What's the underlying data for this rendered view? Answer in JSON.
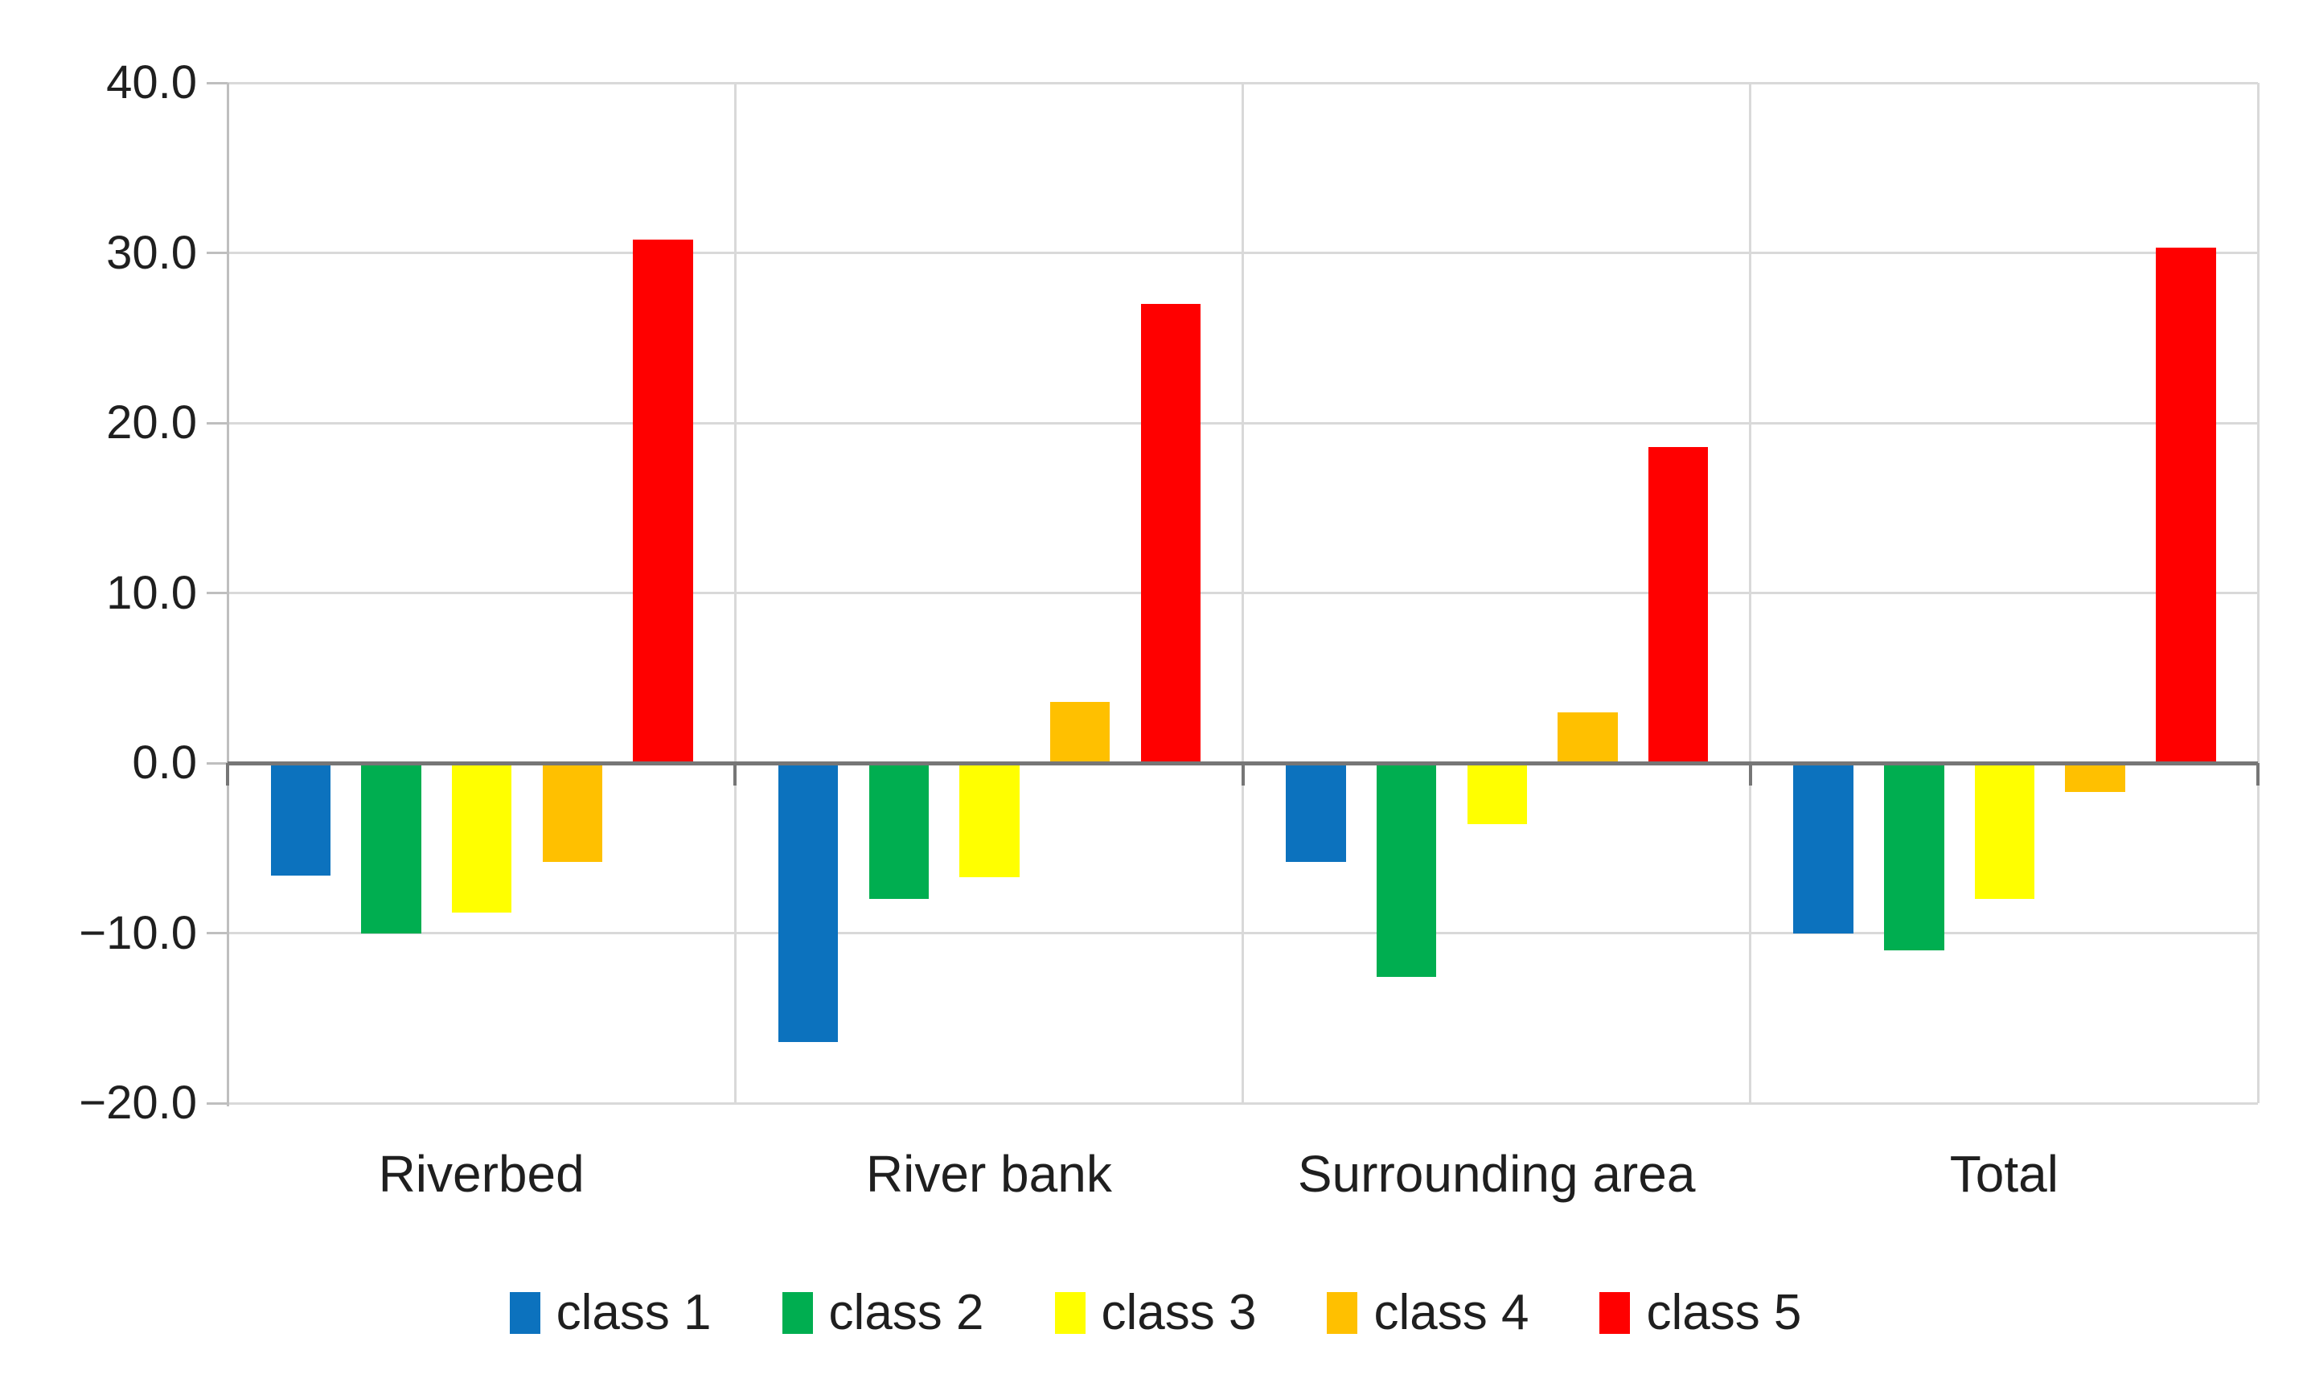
{
  "chart_data": {
    "type": "bar",
    "title": "",
    "xlabel": "",
    "ylabel": "",
    "categories": [
      "Riverbed",
      "River bank",
      "Surrounding area",
      "Total"
    ],
    "series": [
      {
        "name": "class 1",
        "color": "#0c72be",
        "values": [
          -6.6,
          -16.4,
          -5.8,
          -10.0
        ]
      },
      {
        "name": "class 2",
        "color": "#00ae50",
        "values": [
          -10.0,
          -8.0,
          -12.6,
          -11.0
        ]
      },
      {
        "name": "class 3",
        "color": "#ffff00",
        "values": [
          -8.8,
          -6.7,
          -3.6,
          -8.0
        ]
      },
      {
        "name": "class 4",
        "color": "#ffc000",
        "values": [
          -5.8,
          3.6,
          3.0,
          -1.7
        ]
      },
      {
        "name": "class 5",
        "color": "#ff0000",
        "values": [
          30.8,
          27.0,
          18.6,
          30.3
        ]
      }
    ],
    "ylim": [
      -20,
      40
    ],
    "y_ticks": [
      {
        "value": 40,
        "label": "40.0"
      },
      {
        "value": 30,
        "label": "30.0"
      },
      {
        "value": 20,
        "label": "20.0"
      },
      {
        "value": 10,
        "label": "10.0"
      },
      {
        "value": 0,
        "label": "0.0"
      },
      {
        "value": -10,
        "label": "−10.0"
      },
      {
        "value": -20,
        "label": "−20.0"
      }
    ],
    "grid": true,
    "legend_position": "bottom"
  },
  "colors": {
    "background": "#ffffff",
    "gridline": "#d9d9d9",
    "axis_line": "#bfbfbf",
    "zero_line": "#767676",
    "text": "#1f1f1f"
  }
}
